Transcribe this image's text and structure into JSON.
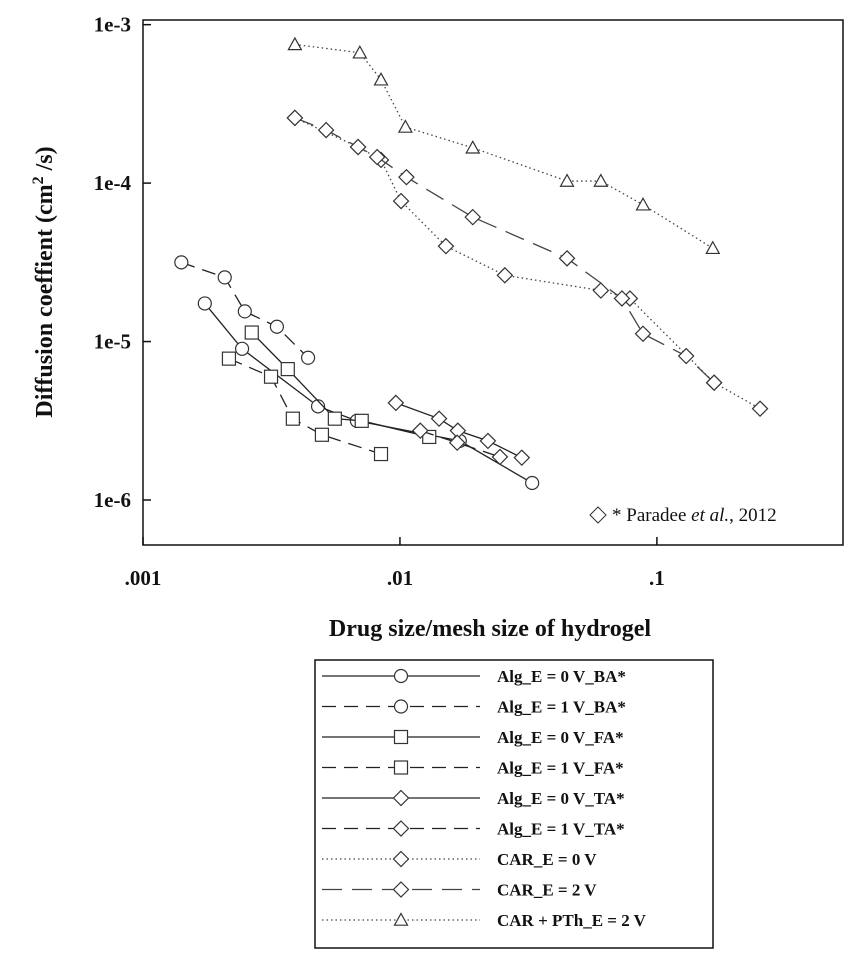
{
  "chart_data": {
    "type": "scatter",
    "x_label": "Drug size/mesh size of hydrogel",
    "y_label": {
      "text": "Diffusion coeffient (cm",
      "sup": "2",
      "end": " /s)"
    },
    "annotation": {
      "prefix": "* Paradee ",
      "italic": "et al.",
      "suffix": ", 2012"
    },
    "log_x": true,
    "log_y": true,
    "xlim": [
      0.001,
      0.53
    ],
    "ylim": [
      5.2e-07,
      0.00107
    ],
    "xticks": [
      {
        "value": 0.001,
        "label": ".001"
      },
      {
        "value": 0.01,
        "label": ".01"
      },
      {
        "value": 0.1,
        "label": ".1"
      }
    ],
    "yticks": [
      {
        "value": 1e-06,
        "label": "1e-6"
      },
      {
        "value": 1e-05,
        "label": "1e-5"
      },
      {
        "value": 0.0001,
        "label": "1e-4"
      },
      {
        "value": 0.001,
        "label": "1e-3"
      }
    ],
    "series": [
      {
        "name": "Alg_E = 0 V_BA*",
        "marker": "circle",
        "dash": "solid",
        "color": "#222",
        "x": [
          0.00174,
          0.00243,
          0.0048,
          0.0068,
          0.0171,
          0.0327
        ],
        "values": [
          1.74e-05,
          9e-06,
          3.9e-06,
          3.16e-06,
          2.36e-06,
          1.28e-06
        ]
      },
      {
        "name": "Alg_E = 1 V_BA*",
        "marker": "circle",
        "dash": "dashed",
        "color": "#222",
        "x": [
          0.00141,
          0.00208,
          0.00249,
          0.00332,
          0.00439
        ],
        "values": [
          3.16e-05,
          2.54e-05,
          1.55e-05,
          1.24e-05,
          7.9e-06
        ]
      },
      {
        "name": "Alg_E = 0 V_FA*",
        "marker": "square",
        "dash": "solid",
        "color": "#222",
        "x": [
          0.00265,
          0.00366,
          0.00558,
          0.0071,
          0.013
        ],
        "values": [
          1.14e-05,
          6.7e-06,
          3.26e-06,
          3.16e-06,
          2.5e-06
        ]
      },
      {
        "name": "Alg_E = 1 V_FA*",
        "marker": "square",
        "dash": "dashed",
        "color": "#222",
        "x": [
          0.00216,
          0.00315,
          0.00383,
          0.00497,
          0.00844
        ],
        "values": [
          7.8e-06,
          6e-06,
          3.26e-06,
          2.58e-06,
          1.95e-06
        ]
      },
      {
        "name": "Alg_E = 0 V_TA*",
        "marker": "diamond",
        "dash": "solid",
        "color": "#222",
        "x": [
          0.00964,
          0.0142,
          0.0168,
          0.022,
          0.0298
        ],
        "values": [
          4.1e-06,
          3.26e-06,
          2.74e-06,
          2.36e-06,
          1.85e-06
        ]
      },
      {
        "name": "Alg_E = 1 V_TA*",
        "marker": "diamond",
        "dash": "dashed",
        "color": "#222",
        "x": [
          0.012,
          0.0167,
          0.0245
        ],
        "values": [
          2.74e-06,
          2.3e-06,
          1.87e-06
        ]
      },
      {
        "name": "CAR_E = 0 V",
        "marker": "diamond",
        "dash": "dotted",
        "color": "#444",
        "x": [
          0.0039,
          0.00687,
          0.00844,
          0.0101,
          0.0151,
          0.0256,
          0.0605,
          0.0785,
          0.167,
          0.252
        ],
        "values": [
          0.000258,
          0.000169,
          0.00014,
          7.7e-05,
          4e-05,
          2.62e-05,
          2.1e-05,
          1.87e-05,
          5.5e-06,
          3.77e-06
        ]
      },
      {
        "name": "CAR_E = 2 V",
        "marker": "diamond",
        "dash": "longdash",
        "color": "#444",
        "x": [
          0.0039,
          0.00516,
          0.00687,
          0.00815,
          0.0106,
          0.0192,
          0.0447,
          0.0731,
          0.0883,
          0.13,
          0.167
        ],
        "values": [
          0.000258,
          0.000216,
          0.000169,
          0.000146,
          0.000109,
          6.1e-05,
          3.35e-05,
          1.87e-05,
          1.12e-05,
          8.1e-06,
          5.5e-06
        ]
      },
      {
        "name": "CAR + PTh_E = 2 V",
        "marker": "triangle",
        "dash": "dotted",
        "color": "#444",
        "x": [
          0.0039,
          0.00698,
          0.00844,
          0.0105,
          0.0192,
          0.0447,
          0.0605,
          0.0883,
          0.165
        ],
        "values": [
          0.00075,
          0.000665,
          0.000449,
          0.000226,
          0.000167,
          0.000103,
          0.000103,
          7.3e-05,
          3.88e-05
        ]
      }
    ]
  }
}
